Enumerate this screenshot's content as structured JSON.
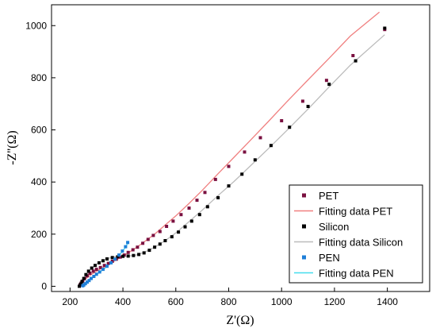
{
  "chart_data": {
    "type": "scatter",
    "xlabel": "Z'(Ω)",
    "ylabel": "-Z''(Ω)",
    "xlim": [
      130,
      1560
    ],
    "ylim": [
      -20,
      1080
    ],
    "xticks": [
      200,
      400,
      600,
      800,
      1000,
      1200,
      1400
    ],
    "yticks": [
      0,
      200,
      400,
      600,
      800,
      1000
    ],
    "grid": false,
    "legend_position": "bottom-right",
    "series": [
      {
        "name": "PET",
        "kind": "points",
        "color": "#7a1040",
        "x": [
          238,
          242,
          248,
          255,
          265,
          275,
          288,
          300,
          315,
          330,
          345,
          360,
          375,
          390,
          405,
          420,
          438,
          455,
          475,
          495,
          515,
          540,
          565,
          590,
          620,
          650,
          680,
          710,
          750,
          800,
          860,
          920,
          1000,
          1080,
          1170,
          1270,
          1390
        ],
        "y": [
          5,
          12,
          20,
          30,
          40,
          50,
          58,
          65,
          72,
          80,
          88,
          96,
          104,
          112,
          120,
          130,
          140,
          150,
          165,
          180,
          195,
          210,
          230,
          250,
          275,
          300,
          330,
          360,
          410,
          460,
          515,
          570,
          635,
          710,
          790,
          885,
          985
        ]
      },
      {
        "name": "Fitting data PET",
        "kind": "line",
        "color": "#f08080",
        "x": [
          235,
          245,
          260,
          280,
          300,
          330,
          360,
          390,
          420,
          450,
          480,
          520,
          560,
          600,
          650,
          700,
          760,
          820,
          880,
          950,
          1020,
          1100,
          1180,
          1260,
          1370
        ],
        "y": [
          0,
          15,
          30,
          45,
          58,
          75,
          92,
          110,
          128,
          148,
          170,
          200,
          235,
          270,
          318,
          368,
          432,
          495,
          558,
          632,
          708,
          792,
          875,
          960,
          1052
        ]
      },
      {
        "name": "Silicon",
        "kind": "points",
        "color": "#000000",
        "x": [
          235,
          240,
          245,
          252,
          260,
          270,
          282,
          295,
          310,
          325,
          340,
          360,
          380,
          400,
          420,
          440,
          460,
          480,
          500,
          520,
          540,
          560,
          585,
          610,
          635,
          660,
          690,
          720,
          760,
          800,
          850,
          900,
          960,
          1030,
          1100,
          1180,
          1280,
          1390
        ],
        "y": [
          0,
          8,
          18,
          30,
          45,
          58,
          70,
          80,
          90,
          98,
          105,
          110,
          113,
          115,
          116,
          118,
          122,
          128,
          138,
          150,
          162,
          175,
          190,
          208,
          228,
          250,
          275,
          305,
          340,
          385,
          430,
          485,
          540,
          610,
          690,
          775,
          865,
          990
        ]
      },
      {
        "name": "Fitting data Silicon",
        "kind": "line",
        "color": "#bbbbbb",
        "x": [
          235,
          245,
          260,
          280,
          300,
          330,
          360,
          390,
          420,
          450,
          480,
          520,
          560,
          600,
          650,
          700,
          760,
          820,
          880,
          950,
          1020,
          1100,
          1180,
          1260,
          1390
        ],
        "y": [
          0,
          20,
          45,
          68,
          85,
          102,
          112,
          115,
          116,
          120,
          130,
          150,
          175,
          205,
          248,
          292,
          348,
          402,
          460,
          528,
          598,
          680,
          765,
          848,
          965
        ]
      },
      {
        "name": "PEN",
        "kind": "points",
        "color": "#1e7fd8",
        "x": [
          248,
          252,
          258,
          265,
          272,
          280,
          290,
          300,
          312,
          325,
          340,
          355,
          370,
          385,
          398,
          410,
          418
        ],
        "y": [
          2,
          5,
          10,
          16,
          22,
          30,
          38,
          46,
          55,
          65,
          77,
          90,
          104,
          120,
          135,
          152,
          168
        ]
      },
      {
        "name": "Fitting data PEN",
        "kind": "line",
        "color": "#44ddee",
        "x": [
          245,
          255,
          268,
          282,
          298,
          315,
          335,
          355,
          375,
          395,
          410,
          420
        ],
        "y": [
          0,
          8,
          18,
          30,
          43,
          56,
          72,
          90,
          108,
          130,
          150,
          168
        ]
      }
    ]
  }
}
